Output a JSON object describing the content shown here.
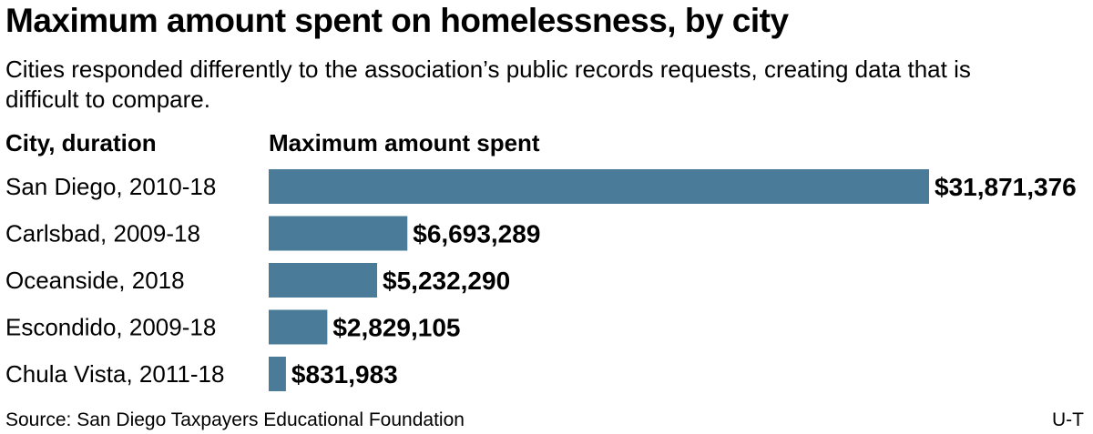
{
  "title": "Maximum amount spent on homelessness, by city",
  "subtitle": "Cities responded differently to the association’s public records requests, creating data that is difficult to compare.",
  "columns": {
    "city": "City, duration",
    "amount": "Maximum amount spent"
  },
  "source": "Source: San Diego Taxpayers Educational Foundation",
  "credit": "U-T",
  "colors": {
    "bar": "#4a7c99",
    "text": "#000000"
  },
  "chart_data": {
    "type": "bar",
    "orientation": "horizontal",
    "title": "Maximum amount spent on homelessness, by city",
    "xlabel": "Maximum amount spent",
    "ylabel": "City, duration",
    "categories": [
      "San Diego, 2010-18",
      "Carlsbad, 2009-18",
      "Oceanside, 2018",
      "Escondido, 2009-18",
      "Chula Vista, 2011-18"
    ],
    "values": [
      31871376,
      6693289,
      5232290,
      2829105,
      831983
    ],
    "value_labels": [
      "$31,871,376",
      "$6,693,289",
      "$5,232,290",
      "$2,829,105",
      "$831,983"
    ],
    "xlim": [
      0,
      31871376
    ],
    "grid": false,
    "legend": "none"
  }
}
